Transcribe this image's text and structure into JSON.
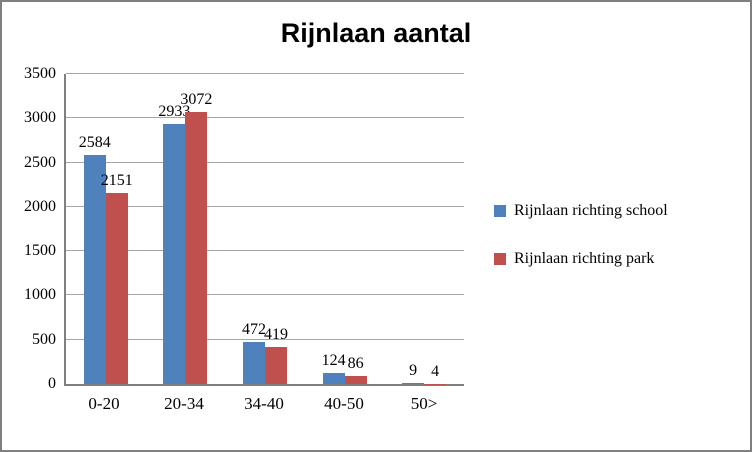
{
  "chart_data": {
    "type": "bar",
    "title": "Rijnlaan aantal",
    "categories": [
      "0-20",
      "20-34",
      "34-40",
      "40-50",
      "50>"
    ],
    "series": [
      {
        "name": "Rijnlaan richting school",
        "color": "#4f81bd",
        "values": [
          2584,
          2933,
          472,
          124,
          9
        ]
      },
      {
        "name": "Rijnlaan richting park",
        "color": "#c0504d",
        "values": [
          2151,
          3072,
          419,
          86,
          4
        ]
      }
    ],
    "ylim": [
      0,
      3500
    ],
    "ytick_step": 500,
    "grid": true,
    "legend_position": "right",
    "axis_color": "#7f7f7f",
    "gridline_color": "#a6a6a6"
  }
}
